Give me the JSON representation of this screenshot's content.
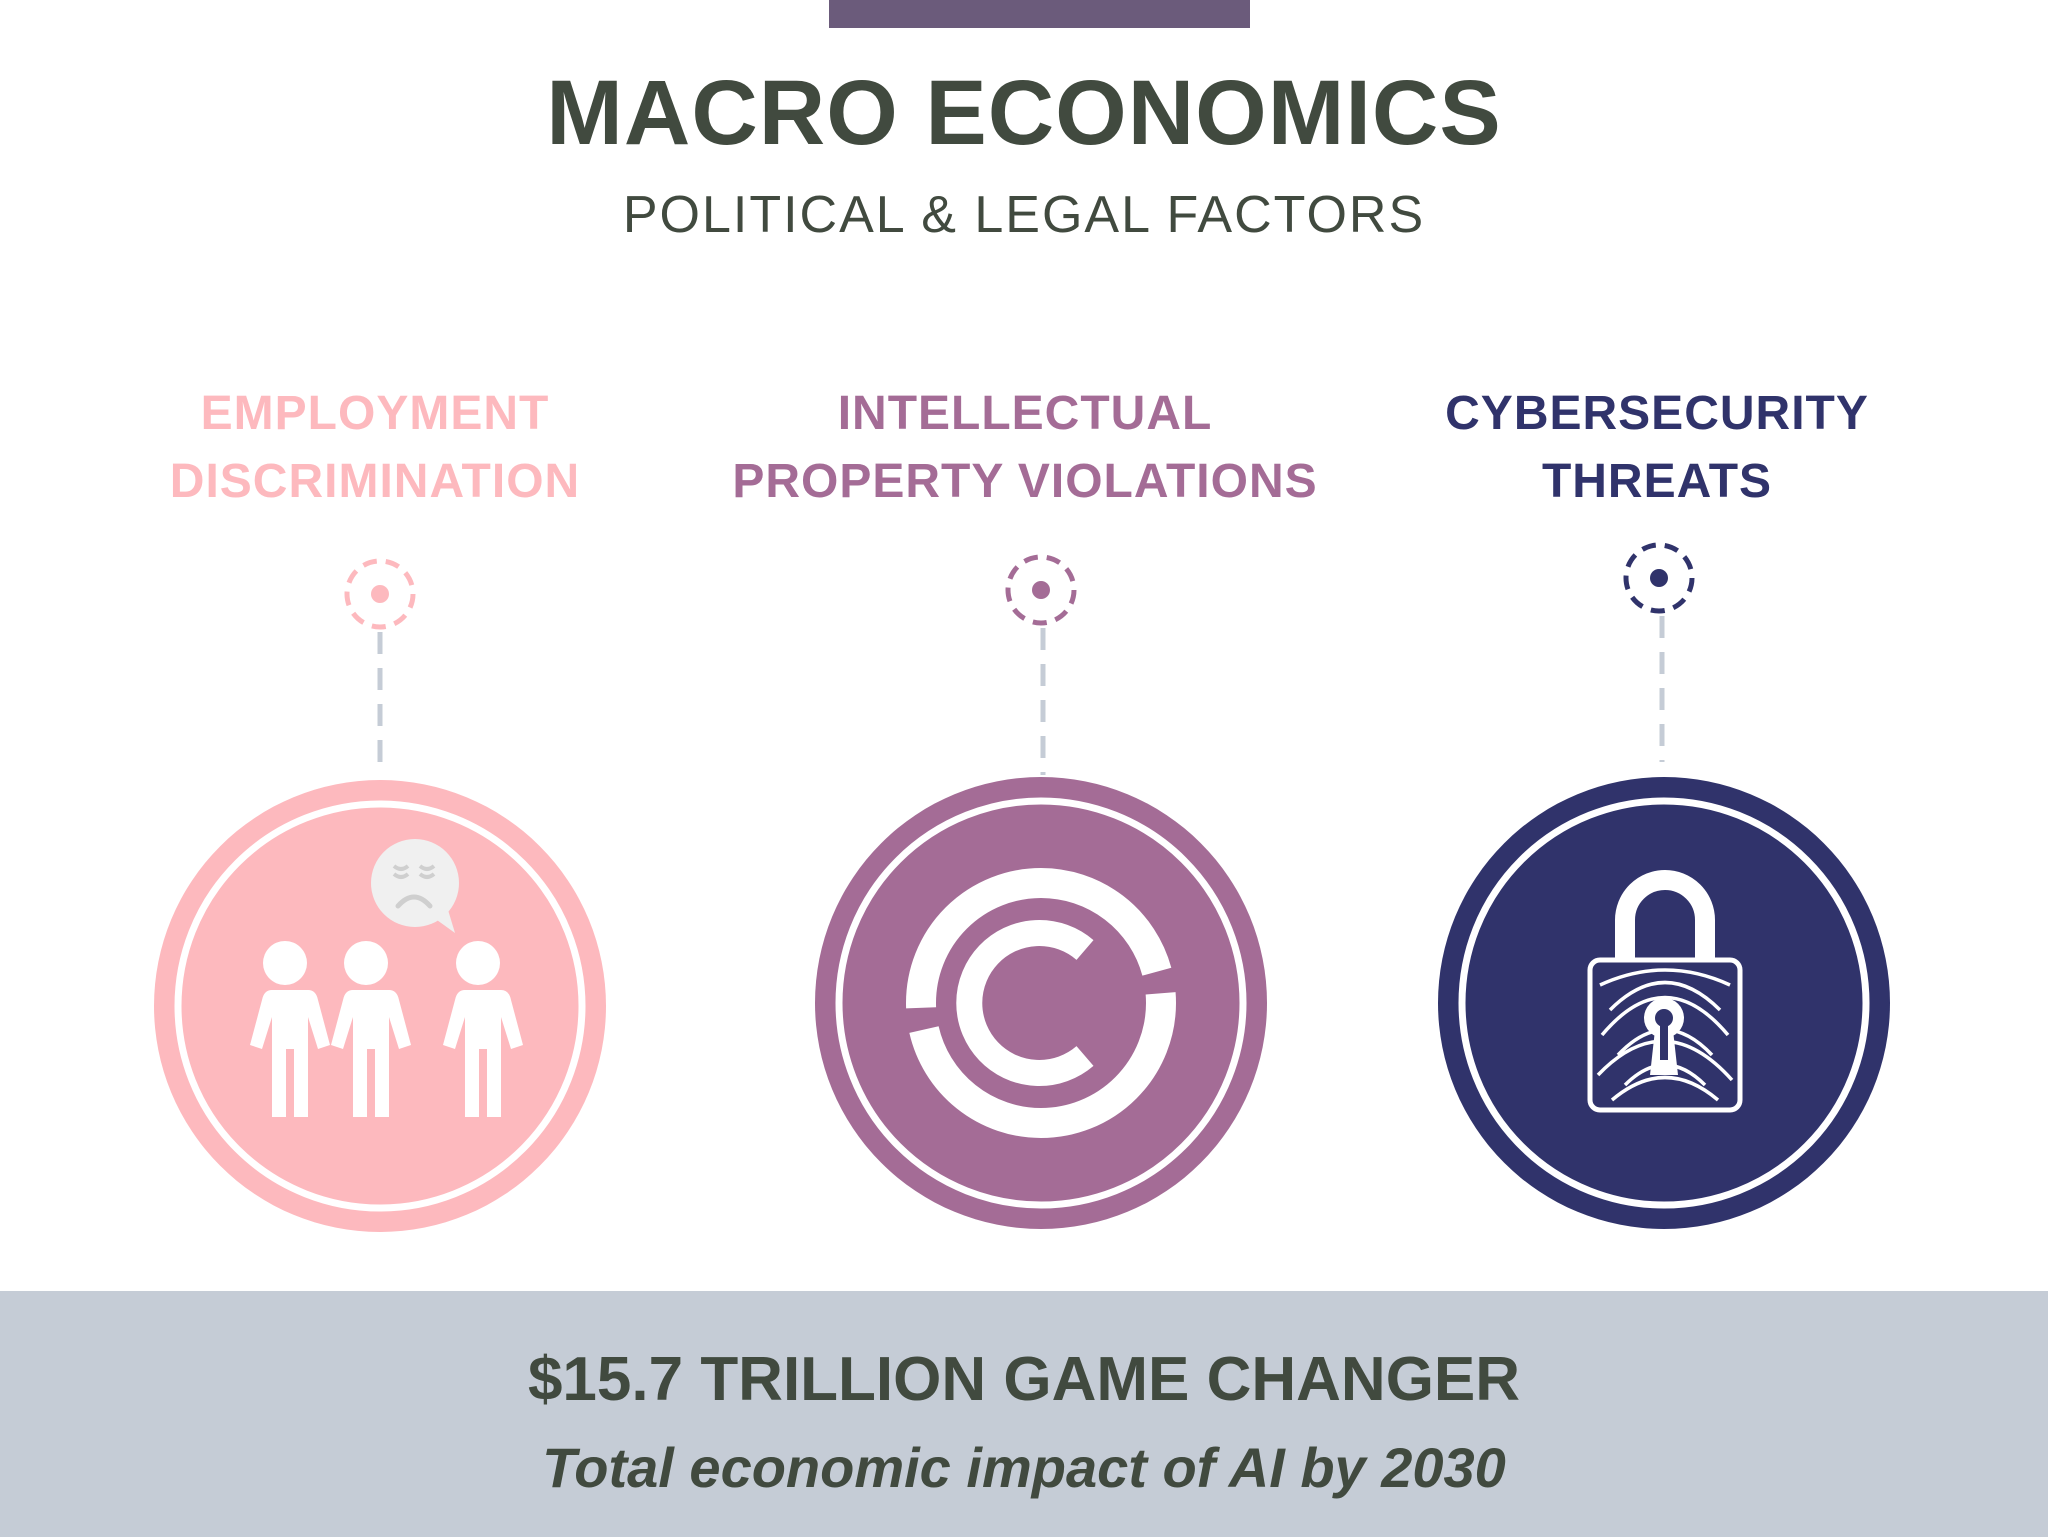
{
  "header": {
    "title": "MACRO ECONOMICS",
    "subtitle": "POLITICAL & LEGAL FACTORS"
  },
  "factors": [
    {
      "line1": "EMPLOYMENT",
      "line2": "DISCRIMINATION",
      "icon": "people-with-sad-speech-bubble-icon",
      "color": "#fdb9be"
    },
    {
      "line1": "INTELLECTUAL",
      "line2": "PROPERTY VIOLATIONS",
      "icon": "copyright-icon",
      "color": "#a46c96"
    },
    {
      "line1": "CYBERSECURITY",
      "line2": "THREATS",
      "icon": "fingerprint-padlock-icon",
      "color": "#30336b"
    }
  ],
  "footer": {
    "headline": "$15.7 TRILLION GAME CHANGER",
    "caption": "Total economic impact of AI by 2030"
  },
  "colors": {
    "text": "#414a3f",
    "top_bar": "#6b5b7b",
    "footer_bg": "#c5ccd6",
    "connector": "#c5ccd6"
  }
}
